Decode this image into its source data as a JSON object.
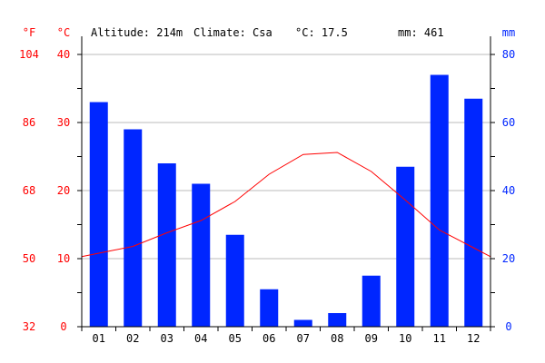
{
  "header": {
    "altitude": "Altitude: 214m",
    "climate": "Climate: Csa",
    "mean_temp": "°C: 17.5",
    "precip": "mm: 461"
  },
  "axes": {
    "fahrenheit_unit": "°F",
    "celsius_unit": "°C",
    "mm_unit": "mm",
    "fahrenheit_ticks": [
      "32",
      "50",
      "68",
      "86",
      "104"
    ],
    "celsius_ticks": [
      "0",
      "10",
      "20",
      "30",
      "40"
    ],
    "mm_ticks": [
      "0",
      "20",
      "40",
      "60",
      "80"
    ]
  },
  "colors": {
    "temperature": "#ff0000",
    "precipitation": "#0026ff",
    "grid": "#bbbbbb",
    "axis": "#000000"
  },
  "chart_data": {
    "type": "bar",
    "categories": [
      "01",
      "02",
      "03",
      "04",
      "05",
      "06",
      "07",
      "08",
      "09",
      "10",
      "11",
      "12"
    ],
    "series": [
      {
        "type": "bar",
        "axis": "right",
        "unit": "mm",
        "values": [
          66,
          58,
          48,
          42,
          27,
          11,
          2,
          4,
          15,
          47,
          74,
          67
        ]
      },
      {
        "type": "line",
        "axis": "left",
        "unit": "°C",
        "values": [
          10.8,
          11.8,
          13.8,
          15.6,
          18.4,
          22.4,
          25.3,
          25.6,
          22.8,
          18.6,
          14.2,
          11.6
        ]
      }
    ],
    "celsius_range": [
      0,
      40
    ],
    "mm_range": [
      0,
      80
    ],
    "fahrenheit_range": [
      32,
      104
    ],
    "grid": true
  }
}
